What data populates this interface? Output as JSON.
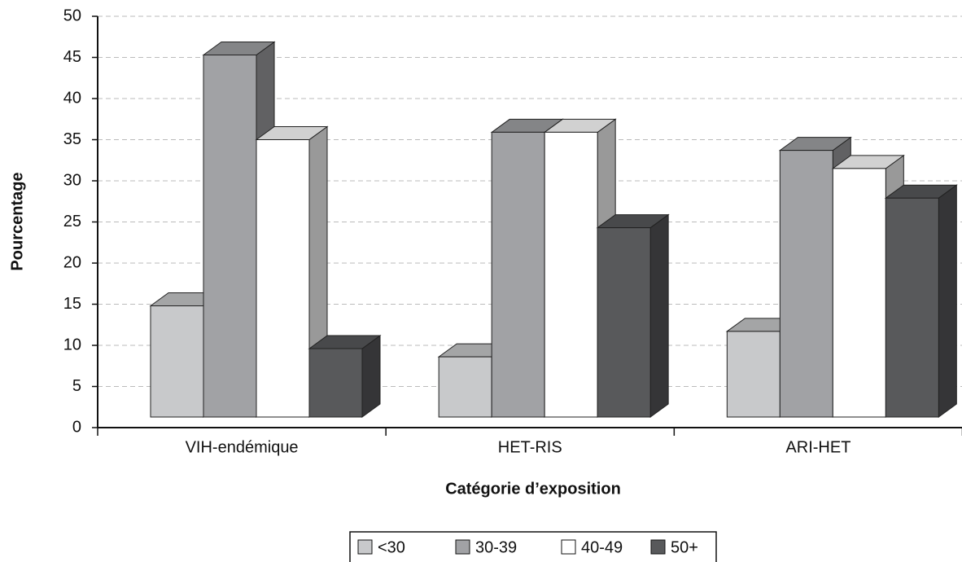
{
  "chart_data": {
    "type": "bar3d",
    "categories": [
      "VIH-endémique",
      "HET-RIS",
      "ARI-HET"
    ],
    "series": [
      {
        "name": "<30",
        "color": "#c8c9cb",
        "values": [
          14.8,
          8.6,
          11.7
        ]
      },
      {
        "name": "30-39",
        "color": "#a1a2a5",
        "values": [
          45.3,
          35.9,
          33.7
        ]
      },
      {
        "name": "40-49",
        "color": "#ffffff",
        "values": [
          35,
          35.9,
          31.5
        ]
      },
      {
        "name": "50+",
        "color": "#58595b",
        "values": [
          9.6,
          24.3,
          27.9
        ]
      }
    ],
    "xlabel": "Catégorie d’exposition",
    "ylabel": "Pourcentage",
    "ylim": [
      0,
      50
    ],
    "yticks": [
      0,
      5,
      10,
      15,
      20,
      25,
      30,
      35,
      40,
      45,
      50
    ],
    "grid": true,
    "legend": "bottom"
  }
}
